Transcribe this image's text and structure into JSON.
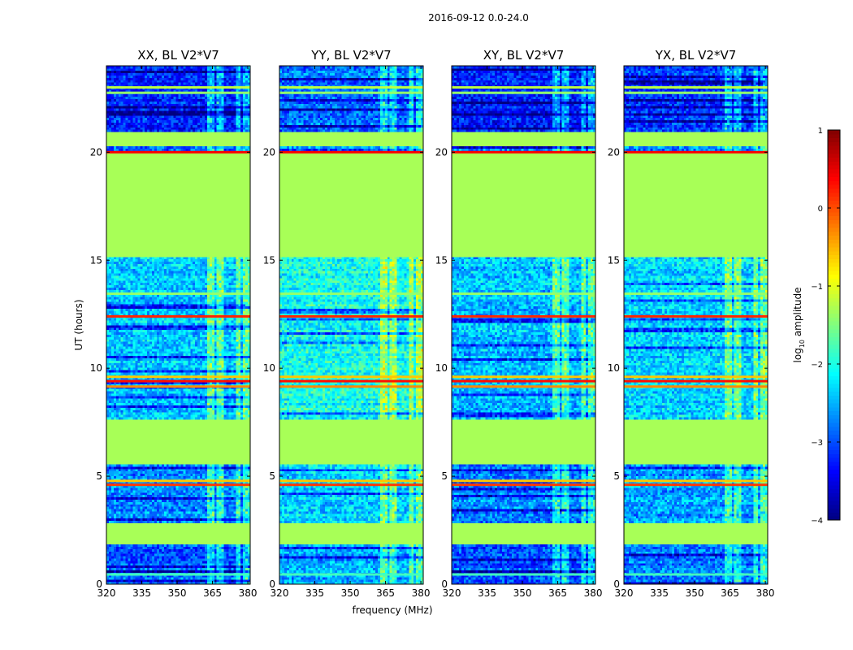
{
  "chart_data": {
    "type": "heatmap",
    "suptitle": "2016-09-12 0.0-24.0",
    "xlabel": "frequency (MHz)",
    "ylabel": "UT (hours)",
    "xlim": [
      320,
      381
    ],
    "ylim": [
      0,
      24
    ],
    "xticks": [
      320,
      335,
      350,
      365,
      380
    ],
    "yticks": [
      0,
      5,
      10,
      15,
      20
    ],
    "panels": [
      {
        "title": "XX, BL V2*V7"
      },
      {
        "title": "YY, BL V2*V7"
      },
      {
        "title": "XY, BL V2*V7"
      },
      {
        "title": "YX, BL V2*V7"
      }
    ],
    "colorbar": {
      "label": "log",
      "label_sub": "10",
      "label_suffix": " amplitude",
      "range": [
        -4,
        1
      ],
      "ticks": [
        -4,
        -3,
        -2,
        -1,
        0,
        1
      ],
      "tick_labels": [
        "−4",
        "−3",
        "−2",
        "−1",
        "0",
        "1"
      ],
      "colormap": "jet"
    },
    "flagged_value": -1.3,
    "flagged_time_ranges_h": [
      [
        1.8,
        2.85
      ],
      [
        5.55,
        7.6
      ],
      [
        15.2,
        20.0
      ],
      [
        20.25,
        20.9
      ]
    ],
    "bright_time_lines_h": [
      {
        "t": 0.45,
        "v": -1.8
      },
      {
        "t": 4.6,
        "v": 0.1
      },
      {
        "t": 4.78,
        "v": -0.6
      },
      {
        "t": 9.4,
        "v": 0.3
      },
      {
        "t": 9.6,
        "v": -0.6
      },
      {
        "t": 9.15,
        "v": -0.3
      },
      {
        "t": 12.4,
        "v": 0.2
      },
      {
        "t": 20.0,
        "v": 0.4
      },
      {
        "t": 13.45,
        "v": -1.4
      },
      {
        "t": 23.0,
        "v": -1.2
      },
      {
        "t": 22.75,
        "v": -1.4
      }
    ],
    "rfi_channel_bands_mhz": [
      [
        363,
        366
      ],
      [
        367,
        370
      ],
      [
        375,
        377
      ],
      [
        378,
        379
      ],
      [
        379,
        381
      ]
    ],
    "noise_level_by_time": [
      {
        "range": [
          0,
          1.8
        ],
        "base": -2.9
      },
      {
        "range": [
          2.85,
          5.55
        ],
        "base": -2.7
      },
      {
        "range": [
          7.6,
          15.2
        ],
        "base": -2.4
      },
      {
        "range": [
          20.9,
          24
        ],
        "base": -3.2
      }
    ]
  }
}
